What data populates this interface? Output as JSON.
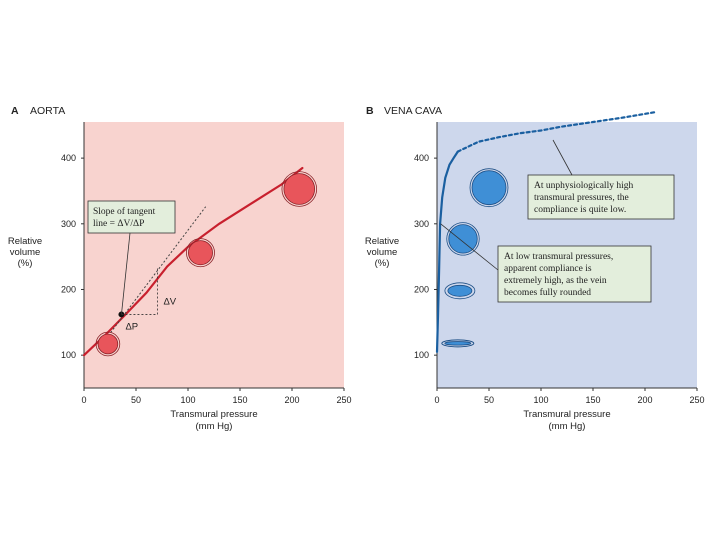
{
  "chart_data": [
    {
      "type": "line",
      "panel_letter": "A",
      "title": "AORTA",
      "xlabel": [
        "Transmural pressure",
        "(mm Hg)"
      ],
      "ylabel": [
        "Relative",
        "volume",
        "(%)"
      ],
      "xlim": [
        0,
        250
      ],
      "ylim": [
        50,
        455
      ],
      "xticks": [
        0,
        50,
        100,
        150,
        200,
        250
      ],
      "yticks": [
        100,
        200,
        300,
        400
      ],
      "grid": false,
      "background_color": "#f8d3cf",
      "series": [
        {
          "color": "#c8202e",
          "style": "solid",
          "x": [
            0,
            20,
            40,
            60,
            80,
            100,
            130,
            160,
            190,
            210
          ],
          "y": [
            100,
            130,
            162,
            195,
            235,
            265,
            300,
            330,
            360,
            385
          ]
        }
      ],
      "tangent": {
        "x": [
          14,
          117
        ],
        "y": [
          110,
          326
        ],
        "color": "#444",
        "style": "dotted"
      },
      "tangent_point": {
        "x": 36,
        "y": 162
      },
      "delta_labels": {
        "dp": "ΔP",
        "dv": "ΔV"
      },
      "vessel_markers": [
        {
          "x": 23,
          "y": 117,
          "size": 0.35
        },
        {
          "x": 112,
          "y": 256,
          "size": 0.55
        },
        {
          "x": 207,
          "y": 353,
          "size": 0.85
        }
      ],
      "vessel_color": "#e8555b",
      "callouts": [
        {
          "text": [
            "Slope of tangent",
            "line = ΔV/ΔP"
          ]
        }
      ],
      "callout_color": "#e3eedc"
    },
    {
      "type": "line",
      "panel_letter": "B",
      "title": "VENA CAVA",
      "xlabel": [
        "Transmural pressure",
        "(mm Hg)"
      ],
      "ylabel": [
        "Relative",
        "volume",
        "(%)"
      ],
      "xlim": [
        0,
        250
      ],
      "ylim": [
        50,
        455
      ],
      "xticks": [
        0,
        50,
        100,
        150,
        200,
        250
      ],
      "yticks": [
        100,
        200,
        300,
        400
      ],
      "grid": false,
      "background_color": "#cdd7ec",
      "series": [
        {
          "color": "#1a5fa0",
          "style": "solid",
          "x": [
            0,
            1,
            2,
            3,
            5,
            8,
            12,
            16,
            20
          ],
          "y": [
            105,
            160,
            230,
            300,
            340,
            370,
            390,
            400,
            410
          ]
        },
        {
          "color": "#1a5fa0",
          "style": "dotted",
          "x": [
            20,
            40,
            60,
            80,
            100,
            120,
            150,
            180,
            210
          ],
          "y": [
            410,
            425,
            432,
            438,
            442,
            448,
            455,
            462,
            470
          ]
        }
      ],
      "vessel_markers": [
        {
          "x": 50,
          "y": 355,
          "shape": "circle",
          "size": 1.0
        },
        {
          "x": 25,
          "y": 277,
          "shape": "circle",
          "size": 0.75
        },
        {
          "x": 22,
          "y": 198,
          "shape": "ellipse",
          "size": 0.6
        },
        {
          "x": 20,
          "y": 118,
          "shape": "collapsed",
          "size": 0.6
        }
      ],
      "vessel_color": "#3f8fd6",
      "callouts": [
        {
          "text": [
            "At unphysiologically high",
            "transmural pressures, the",
            "compliance is quite low."
          ]
        },
        {
          "text": [
            "At low transmural pressures,",
            "apparent compliance is",
            "extremely high, as the vein",
            "becomes fully rounded"
          ]
        }
      ],
      "callout_color": "#e3eedc"
    }
  ]
}
